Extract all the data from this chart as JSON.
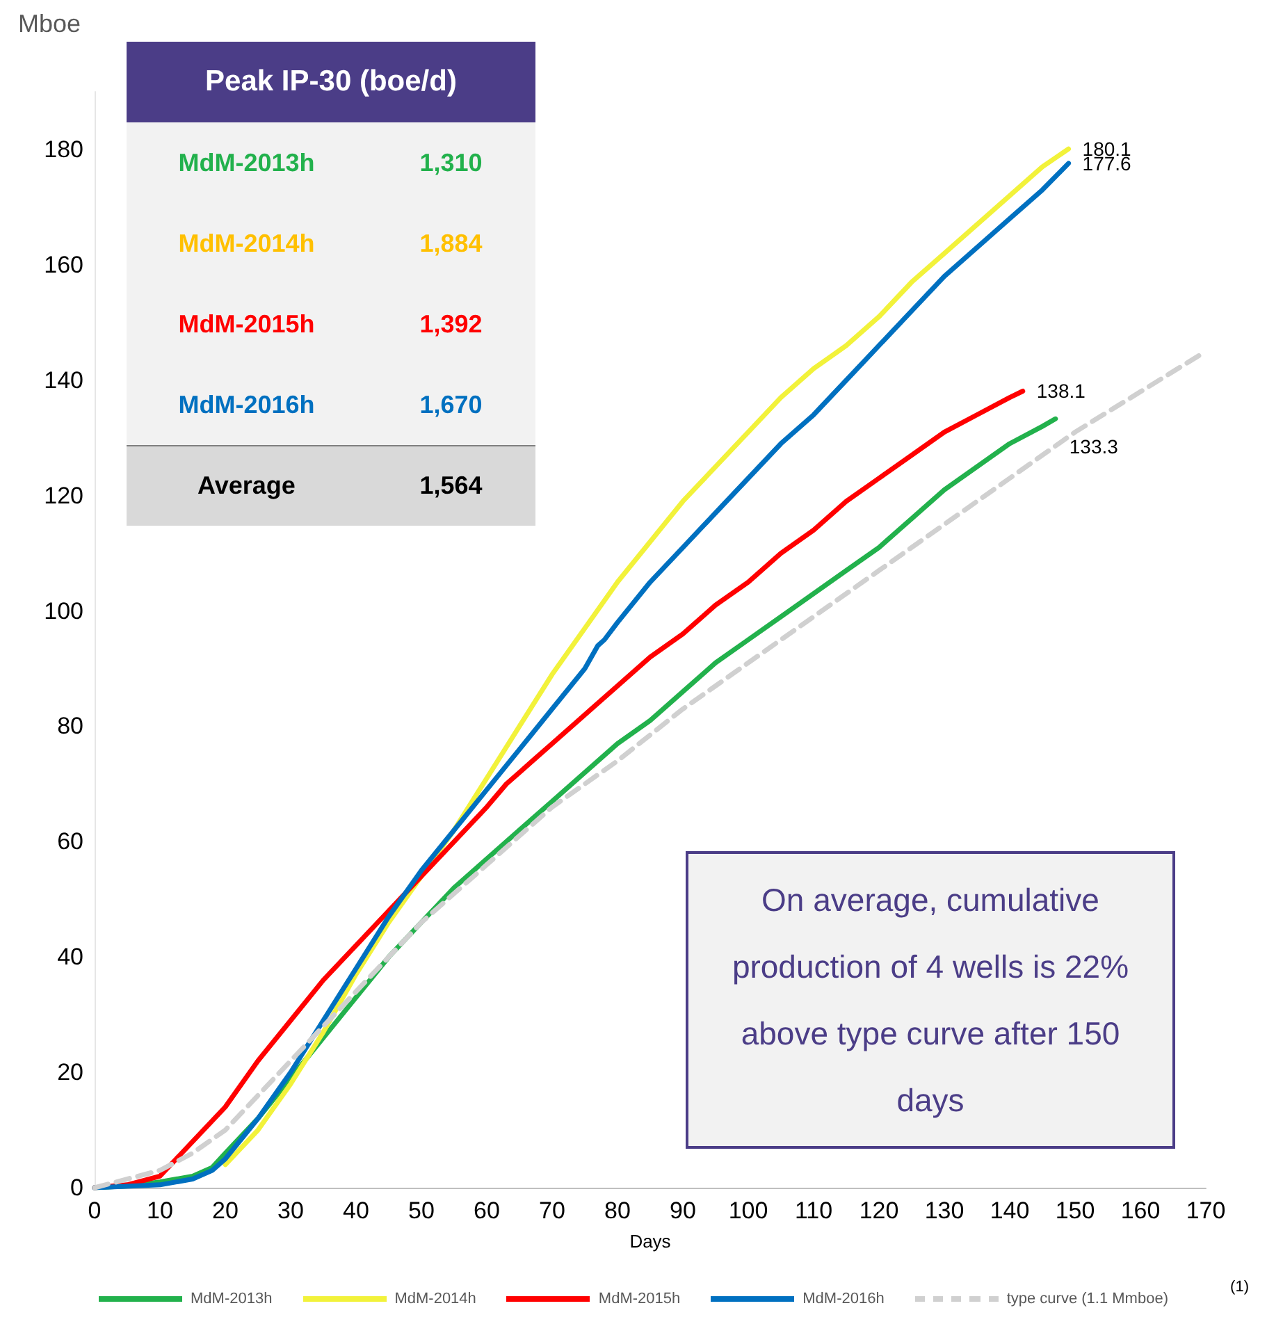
{
  "chart_data": {
    "type": "line",
    "ylabel": "Mboe",
    "xlabel": "Days",
    "xlim": [
      0,
      170
    ],
    "xticks": [
      0,
      10,
      20,
      30,
      40,
      50,
      60,
      70,
      80,
      90,
      100,
      110,
      120,
      130,
      140,
      150,
      160,
      170
    ],
    "ylim": [
      0,
      190
    ],
    "yticks": [
      0,
      20,
      40,
      60,
      80,
      100,
      120,
      140,
      160,
      180
    ],
    "grid": false,
    "legend": "bottom",
    "marker": "none",
    "line_style": "solid",
    "series": [
      {
        "name": "MdM-2013h",
        "color": "#22b14c",
        "x": [
          0,
          5,
          10,
          15,
          18,
          20,
          25,
          30,
          35,
          40,
          45,
          50,
          55,
          60,
          65,
          70,
          75,
          80,
          85,
          90,
          95,
          100,
          105,
          110,
          115,
          120,
          125,
          130,
          135,
          140,
          145,
          147
        ],
        "values": [
          0,
          0.3,
          1,
          2,
          3.5,
          6,
          12,
          19,
          26,
          33,
          40,
          46,
          52,
          57,
          62,
          67,
          72,
          77,
          81,
          86,
          91,
          95,
          99,
          103,
          107,
          111,
          116,
          121,
          125,
          129,
          132,
          133.3
        ],
        "value_labels": [
          null,
          null,
          null,
          null,
          null,
          null,
          null,
          null,
          null,
          null,
          null,
          null,
          null,
          null,
          null,
          null,
          null,
          null,
          null,
          null,
          null,
          null,
          null,
          null,
          null,
          null,
          null,
          null,
          null,
          null,
          null,
          "133.3"
        ]
      },
      {
        "name": "MdM-2014h",
        "color": "#f2f23a",
        "x": [
          20,
          25,
          30,
          35,
          40,
          45,
          50,
          55,
          60,
          65,
          70,
          75,
          80,
          85,
          90,
          95,
          100,
          105,
          110,
          115,
          120,
          125,
          130,
          135,
          140,
          145,
          149
        ],
        "values": [
          4,
          10,
          18,
          27,
          37,
          46,
          54,
          62,
          71,
          80,
          89,
          97,
          105,
          112,
          119,
          125,
          131,
          137,
          142,
          146,
          151,
          157,
          162,
          167,
          172,
          177,
          180.1
        ],
        "value_labels": [
          null,
          null,
          null,
          null,
          null,
          null,
          null,
          null,
          null,
          null,
          null,
          null,
          null,
          null,
          null,
          null,
          null,
          null,
          null,
          null,
          null,
          null,
          null,
          null,
          null,
          null,
          "180.1"
        ]
      },
      {
        "name": "MdM-2015h",
        "color": "#ff0000",
        "x": [
          0,
          5,
          10,
          15,
          20,
          25,
          30,
          35,
          40,
          45,
          50,
          55,
          60,
          63,
          65,
          70,
          75,
          80,
          85,
          90,
          95,
          100,
          105,
          110,
          115,
          120,
          125,
          130,
          135,
          140,
          142
        ],
        "values": [
          0,
          0.5,
          2,
          8,
          14,
          22,
          29,
          36,
          42,
          48,
          54,
          60,
          66,
          70,
          72,
          77,
          82,
          87,
          92,
          96,
          101,
          105,
          110,
          114,
          119,
          123,
          127,
          131,
          134,
          137,
          138.1
        ],
        "value_labels": [
          null,
          null,
          null,
          null,
          null,
          null,
          null,
          null,
          null,
          null,
          null,
          null,
          null,
          null,
          null,
          null,
          null,
          null,
          null,
          null,
          null,
          null,
          null,
          null,
          null,
          null,
          null,
          null,
          null,
          null,
          "138.1"
        ]
      },
      {
        "name": "MdM-2016h",
        "color": "#0070c0",
        "x": [
          0,
          10,
          15,
          18,
          20,
          25,
          30,
          35,
          40,
          45,
          50,
          55,
          60,
          65,
          70,
          75,
          77,
          78,
          80,
          85,
          90,
          95,
          100,
          105,
          110,
          115,
          120,
          125,
          130,
          135,
          140,
          145,
          149
        ],
        "values": [
          0,
          0.5,
          1.5,
          3,
          5,
          12,
          20,
          29,
          38,
          47,
          55,
          62,
          69,
          76,
          83,
          90,
          94,
          95,
          98,
          105,
          111,
          117,
          123,
          129,
          134,
          140,
          146,
          152,
          158,
          163,
          168,
          173,
          177.6
        ],
        "value_labels": [
          null,
          null,
          null,
          null,
          null,
          null,
          null,
          null,
          null,
          null,
          null,
          null,
          null,
          null,
          null,
          null,
          null,
          null,
          null,
          null,
          null,
          null,
          null,
          null,
          null,
          null,
          null,
          null,
          null,
          null,
          null,
          null,
          "177.6"
        ]
      },
      {
        "name": "type curve (1.1 Mmboe)",
        "color": "#d0d0d0",
        "line_style": "dashed",
        "x": [
          0,
          10,
          15,
          20,
          25,
          30,
          35,
          40,
          45,
          50,
          55,
          60,
          70,
          80,
          90,
          100,
          110,
          120,
          130,
          140,
          150,
          160,
          170
        ],
        "values": [
          0,
          3,
          6,
          10,
          16,
          22,
          28,
          34,
          40,
          46,
          51,
          56,
          66,
          74,
          83,
          91,
          99,
          107,
          115,
          123,
          131,
          138,
          145
        ]
      }
    ],
    "annotations": [
      "Peak IP-30 (boe/d)",
      "MdM-2013h",
      "1,310",
      "MdM-2014h",
      "1,884",
      "MdM-2015h",
      "1,392",
      "MdM-2016h",
      "1,670",
      "Average",
      "1,564",
      "On average, cumulative production of 4 wells is 22% above type curve after 150 days",
      "(1)"
    ]
  }
}
